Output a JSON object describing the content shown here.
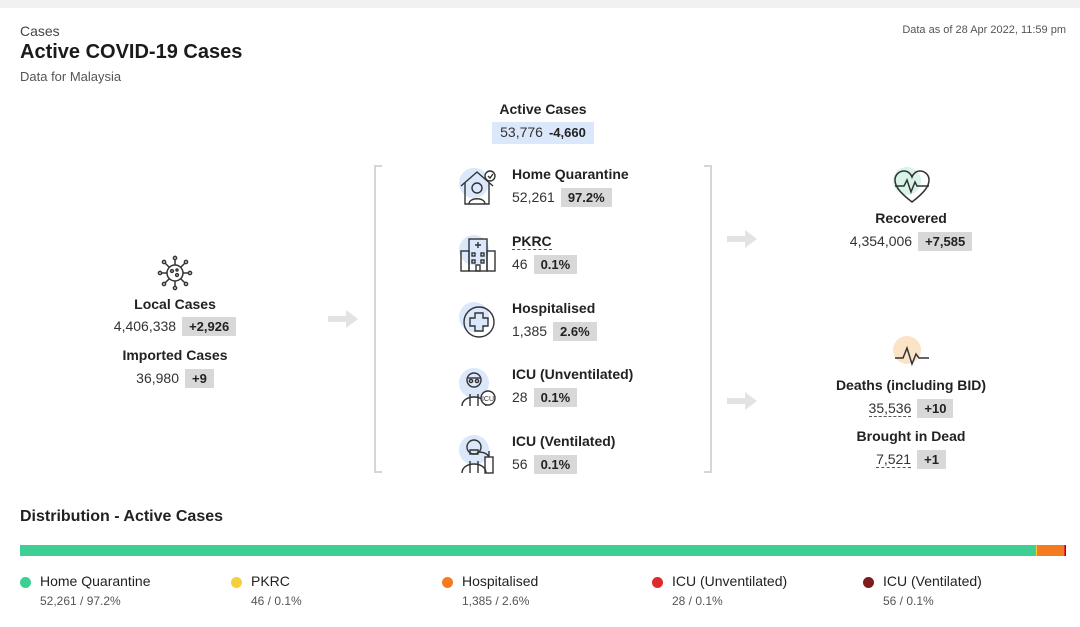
{
  "header": {
    "breadcrumb": "Cases",
    "title": "Active COVID-19 Cases",
    "subtitle": "Data for Malaysia",
    "as_of": "Data as of 28 Apr 2022, 11:59 pm"
  },
  "local": {
    "label": "Local Cases",
    "value": "4,406,338",
    "change": "+2,926",
    "icon": "virus-icon"
  },
  "imported": {
    "label": "Imported Cases",
    "value": "36,980",
    "change": "+9"
  },
  "active": {
    "label": "Active Cases",
    "value": "53,776",
    "change": "-4,660"
  },
  "wards": [
    {
      "label": "Home Quarantine",
      "value": "52,261",
      "pct": "97.2%",
      "icon": "home-quarantine-icon"
    },
    {
      "label": "PKRC",
      "value": "46",
      "pct": "0.1%",
      "icon": "pkrc-building-icon"
    },
    {
      "label": "Hospitalised",
      "value": "1,385",
      "pct": "2.6%",
      "icon": "hospital-cross-icon"
    },
    {
      "label": "ICU (Unventilated)",
      "value": "28",
      "pct": "0.1%",
      "icon": "icu-doctor-icon"
    },
    {
      "label": "ICU (Ventilated)",
      "value": "56",
      "pct": "0.1%",
      "icon": "ventilator-patient-icon"
    }
  ],
  "recovered": {
    "label": "Recovered",
    "value": "4,354,006",
    "change": "+7,585",
    "icon": "heartbeat-icon"
  },
  "deaths": {
    "label": "Deaths (including BID)",
    "value": "35,536",
    "change": "+10",
    "icon": "pulse-line-icon"
  },
  "bid": {
    "label": "Brought in Dead",
    "value": "7,521",
    "change": "+1"
  },
  "distribution": {
    "title": "Distribution - Active Cases",
    "segments": [
      {
        "name": "Home Quarantine",
        "detail": "52,261 / 97.2%",
        "fraction": 0.972,
        "color": "#3ecf95"
      },
      {
        "name": "PKRC",
        "detail": "46 / 0.1%",
        "fraction": 0.001,
        "color": "#f5cf3c"
      },
      {
        "name": "Hospitalised",
        "detail": "1,385 / 2.6%",
        "fraction": 0.026,
        "color": "#f47b20"
      },
      {
        "name": "ICU (Unventilated)",
        "detail": "28 / 0.1%",
        "fraction": 0.001,
        "color": "#dd2b2b"
      },
      {
        "name": "ICU (Ventilated)",
        "detail": "56 / 0.1%",
        "fraction": 0.001,
        "color": "#7c1c1c"
      }
    ]
  }
}
